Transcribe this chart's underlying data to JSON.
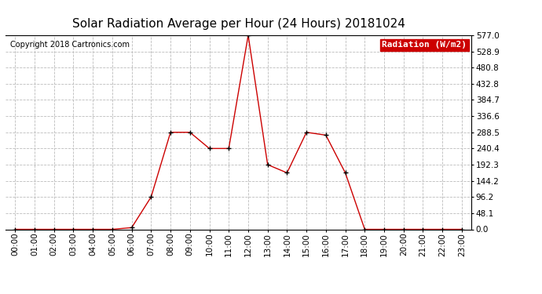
{
  "title": "Solar Radiation Average per Hour (24 Hours) 20181024",
  "copyright": "Copyright 2018 Cartronics.com",
  "legend_label": "Radiation (W/m2)",
  "hours": [
    0,
    1,
    2,
    3,
    4,
    5,
    6,
    7,
    8,
    9,
    10,
    11,
    12,
    13,
    14,
    15,
    16,
    17,
    18,
    19,
    20,
    21,
    22,
    23
  ],
  "hour_labels": [
    "00:00",
    "01:00",
    "02:00",
    "03:00",
    "04:00",
    "05:00",
    "06:00",
    "07:00",
    "08:00",
    "09:00",
    "10:00",
    "11:00",
    "12:00",
    "13:00",
    "14:00",
    "15:00",
    "16:00",
    "17:00",
    "18:00",
    "19:00",
    "20:00",
    "21:00",
    "22:00",
    "23:00"
  ],
  "values": [
    0.0,
    0.0,
    0.0,
    0.0,
    0.0,
    0.0,
    5.0,
    96.2,
    288.5,
    288.5,
    240.4,
    240.4,
    577.0,
    192.3,
    168.0,
    288.5,
    280.0,
    168.0,
    0.0,
    0.0,
    0.0,
    0.0,
    0.0,
    0.0
  ],
  "line_color": "#cc0000",
  "marker_color": "#000000",
  "background_color": "#ffffff",
  "grid_color": "#bbbbbb",
  "ylim": [
    0,
    577.0
  ],
  "yticks": [
    0.0,
    48.1,
    96.2,
    144.2,
    192.3,
    240.4,
    288.5,
    336.6,
    384.7,
    432.8,
    480.8,
    528.9,
    577.0
  ],
  "title_fontsize": 11,
  "copyright_fontsize": 7,
  "legend_fontsize": 8,
  "tick_fontsize": 7.5
}
